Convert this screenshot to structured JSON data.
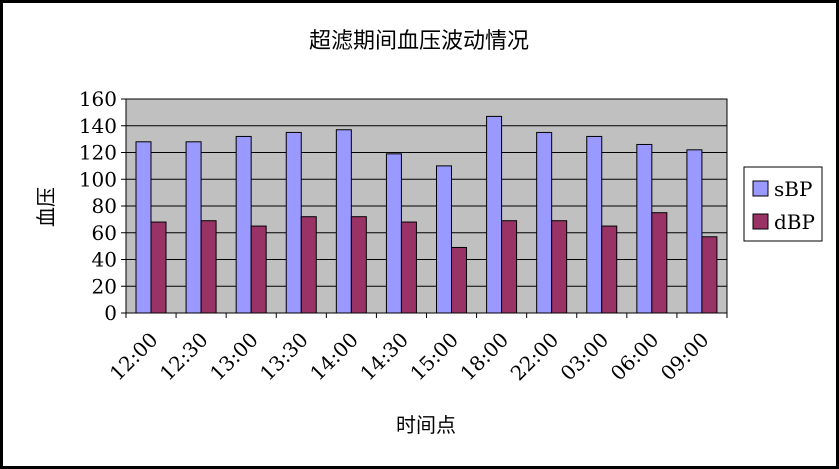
{
  "chart_data": {
    "type": "bar",
    "title": "超滤期间血压波动情况",
    "xlabel": "时间点",
    "ylabel": "血压",
    "categories": [
      "12:00",
      "12:30",
      "13:00",
      "13:30",
      "14:00",
      "14:30",
      "15:00",
      "18:00",
      "22:00",
      "03:00",
      "06:00",
      "09:00"
    ],
    "series": [
      {
        "name": "sBP",
        "color": "#9999ff",
        "values": [
          128,
          128,
          132,
          135,
          137,
          119,
          110,
          147,
          135,
          132,
          126,
          122
        ]
      },
      {
        "name": "dBP",
        "color": "#993366",
        "values": [
          68,
          69,
          65,
          72,
          72,
          68,
          49,
          69,
          69,
          65,
          75,
          57
        ]
      }
    ],
    "ylim": [
      0,
      160
    ],
    "yticks": [
      0,
      20,
      40,
      60,
      80,
      100,
      120,
      140,
      160
    ],
    "grid": true,
    "plot_background": "#c0c0c0",
    "legend_position": "right"
  }
}
